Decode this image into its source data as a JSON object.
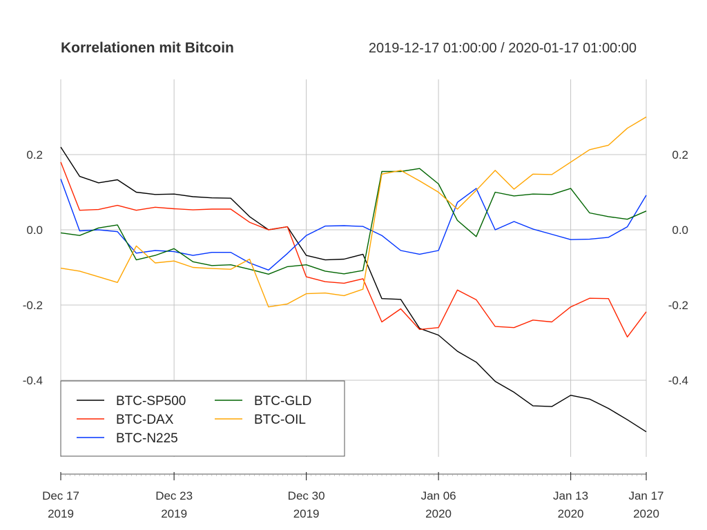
{
  "chart_data": {
    "type": "line",
    "title": "Korrelationen mit Bitcoin",
    "subtitle": "2019-12-17 01:00:00 / 2020-01-17 01:00:00",
    "x": [
      "2019-12-17",
      "2019-12-18",
      "2019-12-19",
      "2019-12-20",
      "2019-12-21",
      "2019-12-22",
      "2019-12-23",
      "2019-12-24",
      "2019-12-25",
      "2019-12-26",
      "2019-12-27",
      "2019-12-28",
      "2019-12-29",
      "2019-12-30",
      "2019-12-31",
      "2020-01-01",
      "2020-01-02",
      "2020-01-03",
      "2020-01-04",
      "2020-01-05",
      "2020-01-06",
      "2020-01-07",
      "2020-01-08",
      "2020-01-09",
      "2020-01-10",
      "2020-01-11",
      "2020-01-12",
      "2020-01-13",
      "2020-01-14",
      "2020-01-15",
      "2020-01-16",
      "2020-01-17"
    ],
    "x_ticks": [
      {
        "date": "2019-12-17",
        "line1": "Dec 17",
        "line2": "2019"
      },
      {
        "date": "2019-12-23",
        "line1": "Dec 23",
        "line2": "2019"
      },
      {
        "date": "2019-12-30",
        "line1": "Dec 30",
        "line2": "2019"
      },
      {
        "date": "2020-01-06",
        "line1": "Jan 06",
        "line2": "2020"
      },
      {
        "date": "2020-01-13",
        "line1": "Jan 13",
        "line2": "2020"
      },
      {
        "date": "2020-01-17",
        "line1": "Jan 17",
        "line2": "2020"
      }
    ],
    "y_ticks": [
      "0.2",
      "0.0",
      "-0.2",
      "-0.4"
    ],
    "ylim": [
      -0.6,
      0.4
    ],
    "grid": true,
    "legend_position": "bottom-left",
    "series": [
      {
        "name": "BTC-SP500",
        "color": "#000000",
        "values": [
          0.22,
          0.142,
          0.125,
          0.133,
          0.1,
          0.094,
          0.095,
          0.088,
          0.085,
          0.084,
          0.035,
          0.0,
          0.008,
          -0.068,
          -0.08,
          -0.078,
          -0.065,
          -0.183,
          -0.185,
          -0.262,
          -0.28,
          -0.323,
          -0.352,
          -0.403,
          -0.432,
          -0.468,
          -0.47,
          -0.44,
          -0.45,
          -0.475,
          -0.505,
          -0.537
        ]
      },
      {
        "name": "BTC-DAX",
        "color": "#ff2500",
        "values": [
          0.18,
          0.052,
          0.054,
          0.065,
          0.052,
          0.06,
          0.056,
          0.053,
          0.055,
          0.055,
          0.02,
          0.0,
          0.008,
          -0.125,
          -0.138,
          -0.142,
          -0.13,
          -0.245,
          -0.21,
          -0.265,
          -0.26,
          -0.16,
          -0.186,
          -0.257,
          -0.26,
          -0.24,
          -0.245,
          -0.205,
          -0.182,
          -0.183,
          -0.285,
          -0.218
        ]
      },
      {
        "name": "BTC-N225",
        "color": "#0033ff",
        "values": [
          0.135,
          -0.003,
          0.0,
          -0.005,
          -0.062,
          -0.055,
          -0.058,
          -0.068,
          -0.06,
          -0.06,
          -0.088,
          -0.107,
          -0.063,
          -0.015,
          0.01,
          0.011,
          0.009,
          -0.015,
          -0.055,
          -0.065,
          -0.055,
          0.073,
          0.11,
          0.0,
          0.022,
          0.002,
          -0.012,
          -0.026,
          -0.025,
          -0.02,
          0.008,
          0.092
        ]
      },
      {
        "name": "BTC-GLD",
        "color": "#006400",
        "values": [
          -0.008,
          -0.015,
          0.005,
          0.013,
          -0.08,
          -0.068,
          -0.05,
          -0.085,
          -0.095,
          -0.093,
          -0.105,
          -0.118,
          -0.098,
          -0.093,
          -0.11,
          -0.117,
          -0.108,
          0.155,
          0.155,
          0.163,
          0.122,
          0.025,
          -0.018,
          0.1,
          0.09,
          0.095,
          0.094,
          0.11,
          0.045,
          0.035,
          0.028,
          0.05
        ]
      },
      {
        "name": "BTC-OIL",
        "color": "#ffa500",
        "values": [
          -0.102,
          -0.11,
          -0.125,
          -0.14,
          -0.043,
          -0.088,
          -0.083,
          -0.1,
          -0.103,
          -0.105,
          -0.078,
          -0.205,
          -0.197,
          -0.17,
          -0.168,
          -0.175,
          -0.158,
          0.148,
          0.158,
          0.13,
          0.1,
          0.055,
          0.105,
          0.158,
          0.108,
          0.148,
          0.147,
          0.18,
          0.213,
          0.225,
          0.27,
          0.3
        ]
      }
    ]
  }
}
